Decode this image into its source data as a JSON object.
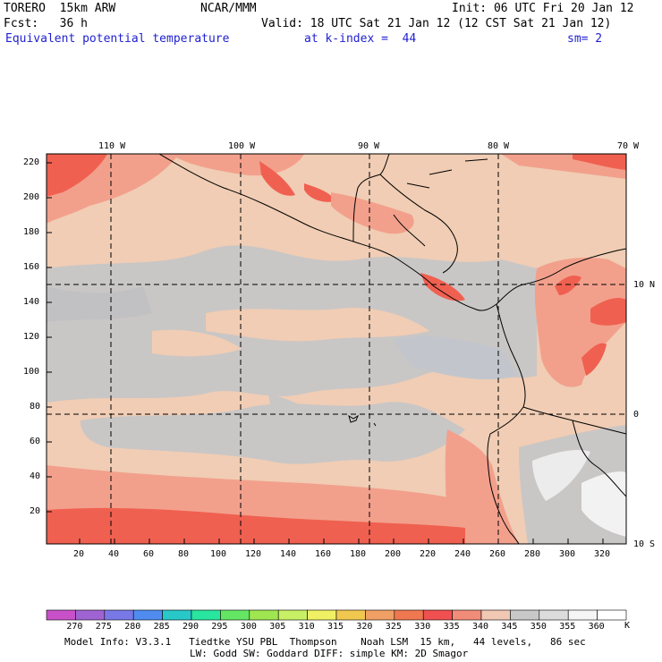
{
  "header": {
    "model": "TORERO  15km ARW",
    "center": "NCAR/MMM",
    "init": "Init: 06 UTC Fri 20 Jan 12",
    "fcst": "Fcst:   36 h",
    "valid": "Valid: 18 UTC Sat 21 Jan 12 (12 CST Sat 21 Jan 12)",
    "field": "Equivalent potential temperature",
    "level": "at k-index =  44",
    "smooth": "sm= 2"
  },
  "map": {
    "lon_labels": [
      "110 W",
      "100 W",
      "90 W",
      "80 W",
      "70 W"
    ],
    "lat_labels": [
      "10 N",
      "0",
      "10 S"
    ],
    "y_grid_labels": [
      "220",
      "200",
      "180",
      "160",
      "140",
      "120",
      "100",
      "80",
      "60",
      "40",
      "20"
    ],
    "x_grid_labels": [
      "20",
      "40",
      "60",
      "80",
      "100",
      "120",
      "140",
      "160",
      "180",
      "200",
      "220",
      "240",
      "260",
      "280",
      "300",
      "320"
    ]
  },
  "colorbar": {
    "unit": "K",
    "labels": [
      "270",
      "275",
      "280",
      "285",
      "290",
      "295",
      "300",
      "305",
      "310",
      "315",
      "320",
      "325",
      "330",
      "335",
      "340",
      "345",
      "350",
      "355",
      "360"
    ],
    "colors": [
      "#c850c8",
      "#a064d2",
      "#7878e6",
      "#508cf0",
      "#28c8c8",
      "#28e6a0",
      "#64e664",
      "#a0e650",
      "#c8f064",
      "#f0f064",
      "#f0c850",
      "#f0a064",
      "#f07850",
      "#f05050",
      "#f08c78",
      "#f0c8b4",
      "#c8c8c8",
      "#dcdcdc",
      "#f5f5f5",
      "#ffffff"
    ]
  },
  "footer": {
    "line1": "Model Info: V3.3.1   Tiedtke YSU PBL  Thompson    Noah LSM  15 km,   44 levels,   86 sec",
    "line2": "LW: Godd SW: Goddard DIFF: simple KM: 2D Smagor"
  }
}
